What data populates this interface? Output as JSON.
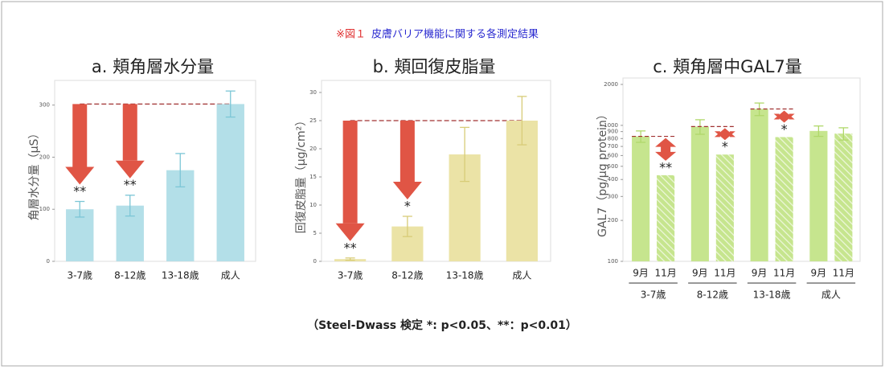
{
  "header": {
    "mark": "※図１",
    "title": "皮膚バリア機能に関する各測定結果"
  },
  "footer": "（Steel-Dwass 検定 *: p<0.05、**：p<0.01）",
  "chart_data": [
    {
      "type": "bar",
      "title": "a. 頬角層水分量",
      "y_label": "角層水分量（μS）",
      "categories": [
        "3-7歳",
        "8-12歳",
        "13-18歳",
        "成人"
      ],
      "values": [
        100,
        107,
        175,
        302
      ],
      "errors": [
        15,
        20,
        32,
        25
      ],
      "significance": [
        "**",
        "**",
        null,
        null
      ],
      "color": "#b3dfe8",
      "error_color": "#7cc6d6",
      "ylim": [
        0,
        335
      ],
      "yticks": [
        0,
        100,
        200,
        300
      ]
    },
    {
      "type": "bar",
      "title": "b. 頬回復皮脂量",
      "y_label": "回復皮脂量（μg/cm²）",
      "categories": [
        "3-7歳",
        "8-12歳",
        "13-18歳",
        "成人"
      ],
      "values": [
        0.4,
        6.2,
        19,
        25
      ],
      "errors": [
        0.2,
        1.8,
        4.8,
        4.3
      ],
      "significance": [
        "**",
        "*",
        null,
        null
      ],
      "color": "#ebe3a6",
      "error_color": "#d8cc78",
      "ylim": [
        0,
        31
      ],
      "yticks": [
        0,
        5,
        10,
        15,
        20,
        25,
        30
      ]
    },
    {
      "type": "grouped-bar",
      "title": "c. 頬角層中GAL7量",
      "y_label": "GAL7（pg/μg protein）",
      "categories": [
        "3-7歳",
        "8-12歳",
        "13-18歳",
        "成人"
      ],
      "series": [
        {
          "name": "9月",
          "color": "#c6e58e",
          "values": [
            830,
            980,
            1320,
            910
          ],
          "errors": [
            80,
            120,
            140,
            80
          ]
        },
        {
          "name": "11月",
          "color": "#c6e58e",
          "hatched": true,
          "values": [
            430,
            610,
            820,
            870
          ],
          "errors": [
            0,
            0,
            0,
            90
          ],
          "significance": [
            "**",
            "*",
            "*",
            null
          ]
        }
      ],
      "error_color": "#b0d86a",
      "log_scale": true,
      "ylim": [
        100,
        2000
      ],
      "yticks": [
        100,
        200,
        300,
        400,
        500,
        600,
        700,
        800,
        900,
        1000,
        2000
      ]
    }
  ]
}
